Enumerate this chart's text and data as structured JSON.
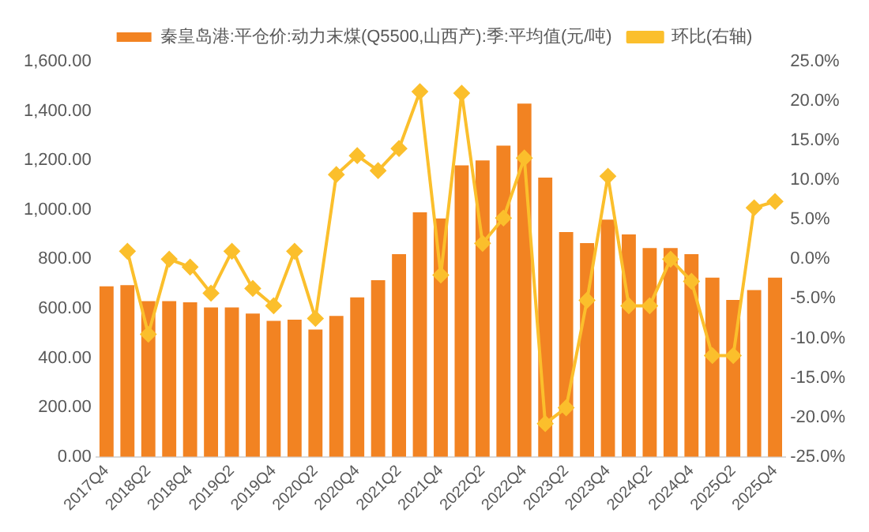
{
  "chart_data": {
    "type": "bar",
    "categories": [
      "2017Q4",
      null,
      "2018Q2",
      null,
      "2018Q4",
      null,
      "2019Q2",
      null,
      "2019Q4",
      null,
      "2020Q2",
      null,
      "2020Q4",
      null,
      "2021Q2",
      null,
      "2021Q4",
      null,
      "2022Q2",
      null,
      "2022Q4",
      null,
      "2023Q2",
      null,
      "2023Q4",
      null,
      "2024Q2",
      null,
      "2024Q4",
      null,
      "2025Q2",
      null,
      "2025Q4"
    ],
    "series": [
      {
        "name": "秦皇岛港:平仓价:动力末煤(Q5500,山西产):季:平均值(元/吨)",
        "color": "#f28322",
        "values": [
          690,
          695,
          630,
          630,
          625,
          605,
          605,
          580,
          550,
          555,
          515,
          570,
          645,
          715,
          820,
          990,
          965,
          1180,
          1200,
          1260,
          1430,
          1130,
          910,
          865,
          960,
          900,
          845,
          845,
          820,
          725,
          635,
          675,
          725
        ]
      },
      {
        "name": "环比(右轴)",
        "type": "line",
        "axis": "y2",
        "color": "#fbbf2c",
        "marker": "diamond",
        "values": [
          null,
          1.0,
          -9.5,
          0.0,
          -1.0,
          -4.3,
          1.0,
          -3.7,
          -5.9,
          1.0,
          -7.5,
          10.7,
          13.1,
          11.2,
          14.0,
          21.2,
          -2.0,
          21.0,
          2.0,
          5.2,
          12.8,
          -20.8,
          -18.8,
          -5.2,
          10.5,
          -5.9,
          -5.9,
          0.0,
          -2.8,
          -12.2,
          -12.2,
          6.5,
          7.3
        ]
      }
    ],
    "ylim": [
      0,
      1600
    ],
    "yticks": [
      {
        "value": 0,
        "label": "0.00"
      },
      {
        "value": 200,
        "label": "200.00"
      },
      {
        "value": 400,
        "label": "400.00"
      },
      {
        "value": 600,
        "label": "600.00"
      },
      {
        "value": 800,
        "label": "800.00"
      },
      {
        "value": 1000,
        "label": "1,000.00"
      },
      {
        "value": 1200,
        "label": "1,200.00"
      },
      {
        "value": 1400,
        "label": "1,400.00"
      },
      {
        "value": 1600,
        "label": "1,600.00"
      }
    ],
    "y2lim": [
      -25,
      25
    ],
    "y2ticks": [
      {
        "value": -25,
        "label": "-25.0%"
      },
      {
        "value": -20,
        "label": "-20.0%"
      },
      {
        "value": -15,
        "label": "-15.0%"
      },
      {
        "value": -10,
        "label": "-10.0%"
      },
      {
        "value": -5,
        "label": "-5.0%"
      },
      {
        "value": 0,
        "label": "0.0%"
      },
      {
        "value": 5,
        "label": "5.0%"
      },
      {
        "value": 10,
        "label": "10.0%"
      },
      {
        "value": 15,
        "label": "15.0%"
      },
      {
        "value": 20,
        "label": "20.0%"
      },
      {
        "value": 25,
        "label": "25.0%"
      }
    ],
    "grid": false,
    "legend": "top"
  }
}
